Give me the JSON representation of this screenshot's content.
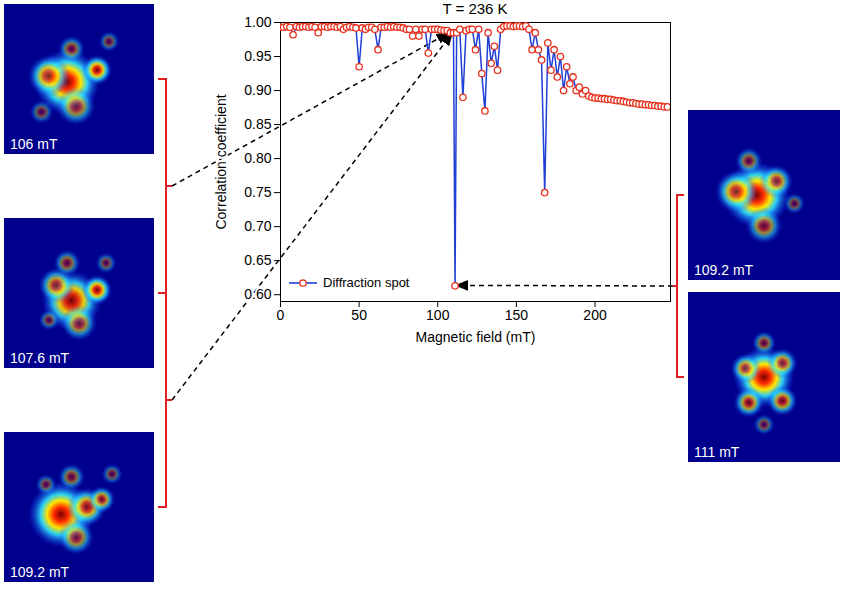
{
  "chart_data": {
    "type": "line",
    "title": "T = 236 K",
    "x_label": "Magnetic field (mT)",
    "y_label": "Correlation coefficient",
    "xlim": [
      0,
      248
    ],
    "xticks": [
      0,
      50,
      100,
      150,
      200
    ],
    "ylim": [
      0.59,
      1.0
    ],
    "yticks": [
      {
        "value": 0.6,
        "label": "0.60"
      },
      {
        "value": 0.65,
        "label": "0.65"
      },
      {
        "value": 0.7,
        "label": "0.70"
      },
      {
        "value": 0.75,
        "label": "0.75"
      },
      {
        "value": 0.8,
        "label": "0.80"
      },
      {
        "value": 0.85,
        "label": "0.85"
      },
      {
        "value": 0.9,
        "label": "0.90"
      },
      {
        "value": 0.95,
        "label": "0.95"
      },
      {
        "value": 1.0,
        "label": "1.00"
      }
    ],
    "grid": false,
    "legend": "lower left",
    "x": [
      0,
      2,
      4,
      6,
      8,
      10,
      12,
      14,
      16,
      18,
      20,
      22,
      24,
      26,
      28,
      30,
      32,
      34,
      36,
      38,
      40,
      42,
      44,
      46,
      48,
      50,
      52,
      54,
      56,
      58,
      60,
      62,
      64,
      66,
      68,
      70,
      72,
      74,
      76,
      78,
      80,
      82,
      84,
      86,
      88,
      90,
      92,
      94,
      96,
      98,
      100,
      102,
      104,
      106,
      108,
      110,
      111,
      112,
      114,
      116,
      118,
      120,
      122,
      124,
      126,
      128,
      130,
      132,
      134,
      136,
      138,
      140,
      142,
      144,
      146,
      148,
      150,
      152,
      154,
      156,
      158,
      160,
      162,
      164,
      166,
      168,
      170,
      172,
      174,
      176,
      178,
      180,
      182,
      184,
      186,
      188,
      190,
      192,
      194,
      196,
      198,
      200,
      202,
      204,
      206,
      208,
      210,
      212,
      214,
      216,
      218,
      220,
      222,
      224,
      226,
      228,
      230,
      232,
      234,
      236,
      238,
      240,
      242,
      244,
      246
    ],
    "series": [
      {
        "name": "Diffraction spot",
        "color": "#1f3fd6",
        "marker": "circle",
        "line_style": "solid",
        "values": [
          0.993,
          0.993,
          0.994,
          0.993,
          0.982,
          0.994,
          0.993,
          0.994,
          0.994,
          0.993,
          0.994,
          0.993,
          0.985,
          0.994,
          0.994,
          0.993,
          0.994,
          0.994,
          0.993,
          0.994,
          0.99,
          0.993,
          0.994,
          0.993,
          0.992,
          0.935,
          0.992,
          0.99,
          0.993,
          0.993,
          0.99,
          0.96,
          0.993,
          0.993,
          0.994,
          0.993,
          0.994,
          0.993,
          0.993,
          0.992,
          0.99,
          0.99,
          0.98,
          0.99,
          0.98,
          0.99,
          0.99,
          0.955,
          0.99,
          0.99,
          0.99,
          0.989,
          0.988,
          0.988,
          0.985,
          0.985,
          0.613,
          0.985,
          0.99,
          0.89,
          0.988,
          0.99,
          0.99,
          0.96,
          0.99,
          0.925,
          0.87,
          0.985,
          0.94,
          0.965,
          0.93,
          0.99,
          0.994,
          0.995,
          0.995,
          0.994,
          0.995,
          0.995,
          0.994,
          0.995,
          0.99,
          0.96,
          0.985,
          0.96,
          0.945,
          0.75,
          0.97,
          0.93,
          0.96,
          0.92,
          0.95,
          0.9,
          0.935,
          0.91,
          0.92,
          0.9,
          0.905,
          0.895,
          0.9,
          0.892,
          0.89,
          0.889,
          0.889,
          0.888,
          0.888,
          0.887,
          0.887,
          0.886,
          0.885,
          0.885,
          0.884,
          0.883,
          0.882,
          0.882,
          0.881,
          0.88,
          0.88,
          0.879,
          0.879,
          0.878,
          0.878,
          0.877,
          0.877,
          0.876,
          0.876
        ]
      }
    ],
    "image_groups": [
      {
        "side": "left",
        "panels": [
          "106 mT",
          "107.6 mT",
          "109.2 mT"
        ],
        "arrows": [
          {
            "x": 108,
            "y": 0.985
          },
          {
            "x": 110,
            "y": 0.985
          }
        ]
      },
      {
        "side": "right",
        "panels": [
          "109.2 mT",
          "111 mT"
        ],
        "arrows": [
          {
            "x": 111,
            "y": 0.613
          }
        ]
      }
    ]
  }
}
